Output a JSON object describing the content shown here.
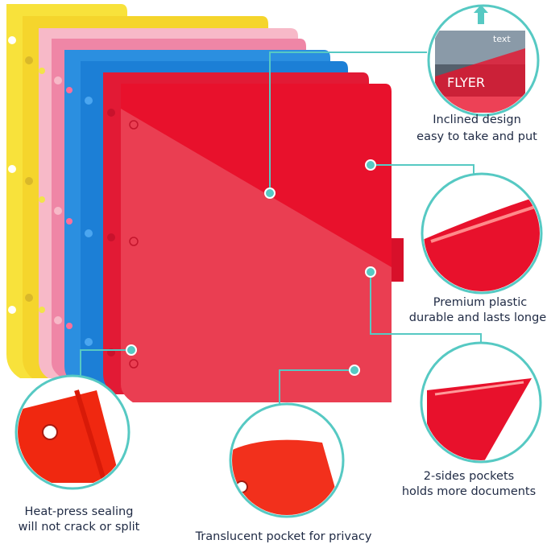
{
  "callouts": [
    {
      "lines": [
        "Inclined design",
        "easy to take and put"
      ]
    },
    {
      "lines": [
        "Premium plastic",
        "durable and lasts longer"
      ]
    },
    {
      "lines": [
        "2-sides pockets",
        "holds more documents"
      ]
    },
    {
      "lines": [
        "Heat-press sealing",
        "will not crack or split"
      ]
    },
    {
      "lines": [
        "Translucent pocket for privacy"
      ]
    }
  ],
  "inset": {
    "tag": "text",
    "headline": "FLYER"
  }
}
